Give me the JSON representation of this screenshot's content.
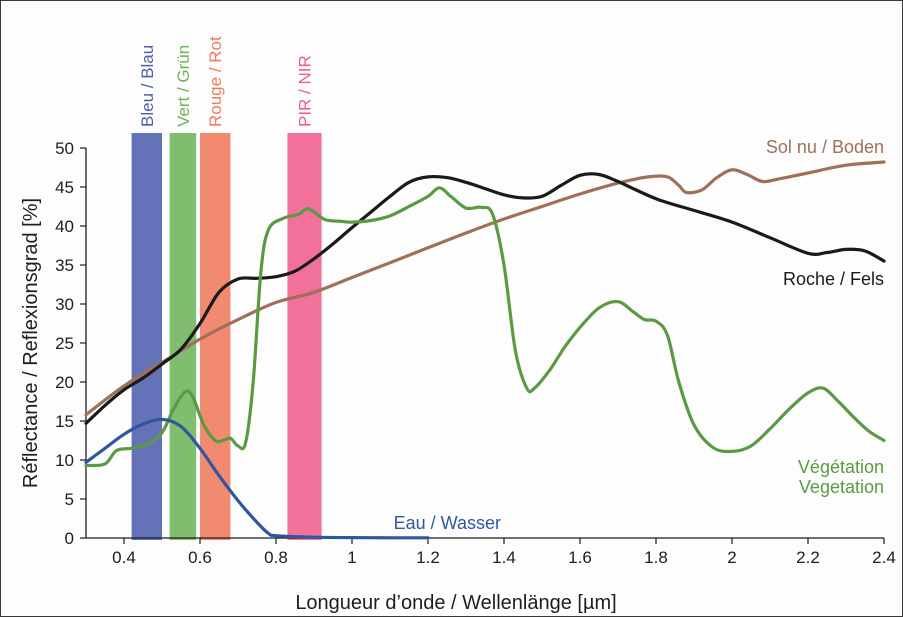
{
  "chart_data": {
    "type": "line",
    "xlabel": "Longueur d’onde / Wellenlänge [µm]",
    "ylabel": "Réflectance / Reflexionsgrad [%]",
    "xlim": [
      0.3,
      2.4
    ],
    "ylim": [
      0,
      50
    ],
    "grid": false,
    "x_ticks": [
      "0.4",
      "0.6",
      "0.8",
      "1",
      "1.2",
      "1.4",
      "1.6",
      "1.8",
      "2",
      "2.2",
      "2.4"
    ],
    "y_ticks": [
      "0",
      "5",
      "10",
      "15",
      "20",
      "25",
      "30",
      "35",
      "40",
      "45",
      "50"
    ],
    "bands": [
      {
        "label": "Bleu / Blau",
        "x_range": [
          0.42,
          0.5
        ],
        "color": "#4f5fae"
      },
      {
        "label": "Vert / Grün",
        "x_range": [
          0.52,
          0.59
        ],
        "color": "#6eb45a"
      },
      {
        "label": "Rouge / Rot",
        "x_range": [
          0.6,
          0.68
        ],
        "color": "#f07a5c"
      },
      {
        "label": "PIR / NIR",
        "x_range": [
          0.83,
          0.92
        ],
        "color": "#ef5d8c"
      }
    ],
    "series": [
      {
        "name": "Sol nu / Boden",
        "label_lines": [
          "Sol nu / Boden"
        ],
        "color": "#a0705a",
        "points": [
          [
            0.3,
            15.8
          ],
          [
            0.4,
            19.5
          ],
          [
            0.5,
            22.5
          ],
          [
            0.6,
            25.5
          ],
          [
            0.7,
            28
          ],
          [
            0.8,
            30.2
          ],
          [
            0.9,
            31.5
          ],
          [
            1.0,
            33.4
          ],
          [
            1.1,
            35.3
          ],
          [
            1.2,
            37.2
          ],
          [
            1.3,
            39.1
          ],
          [
            1.4,
            40.9
          ],
          [
            1.5,
            42.5
          ],
          [
            1.6,
            44.1
          ],
          [
            1.7,
            45.5
          ],
          [
            1.78,
            46.3
          ],
          [
            1.83,
            46.3
          ],
          [
            1.86,
            45.2
          ],
          [
            1.88,
            44.3
          ],
          [
            1.92,
            44.6
          ],
          [
            1.96,
            46.2
          ],
          [
            2.0,
            47.2
          ],
          [
            2.04,
            46.6
          ],
          [
            2.08,
            45.7
          ],
          [
            2.12,
            46
          ],
          [
            2.2,
            46.8
          ],
          [
            2.3,
            47.8
          ],
          [
            2.4,
            48.2
          ]
        ]
      },
      {
        "name": "Roche / Fels",
        "label_lines": [
          "Roche / Fels"
        ],
        "color": "#1a1a1a",
        "points": [
          [
            0.3,
            14.7
          ],
          [
            0.35,
            17
          ],
          [
            0.4,
            19
          ],
          [
            0.45,
            20.5
          ],
          [
            0.5,
            22.3
          ],
          [
            0.55,
            24.2
          ],
          [
            0.6,
            27.5
          ],
          [
            0.65,
            31.5
          ],
          [
            0.7,
            33.2
          ],
          [
            0.75,
            33.3
          ],
          [
            0.8,
            33.5
          ],
          [
            0.85,
            34.2
          ],
          [
            0.9,
            35.8
          ],
          [
            0.95,
            37.7
          ],
          [
            1.0,
            39.8
          ],
          [
            1.05,
            41.8
          ],
          [
            1.1,
            43.8
          ],
          [
            1.15,
            45.6
          ],
          [
            1.2,
            46.3
          ],
          [
            1.25,
            46.2
          ],
          [
            1.3,
            45.6
          ],
          [
            1.35,
            44.8
          ],
          [
            1.4,
            44
          ],
          [
            1.45,
            43.6
          ],
          [
            1.5,
            43.8
          ],
          [
            1.55,
            45.2
          ],
          [
            1.6,
            46.5
          ],
          [
            1.65,
            46.6
          ],
          [
            1.7,
            45.7
          ],
          [
            1.8,
            43.5
          ],
          [
            1.9,
            42
          ],
          [
            2.0,
            40.5
          ],
          [
            2.1,
            38.5
          ],
          [
            2.2,
            36.5
          ],
          [
            2.25,
            36.6
          ],
          [
            2.3,
            37
          ],
          [
            2.35,
            36.8
          ],
          [
            2.4,
            35.5
          ]
        ]
      },
      {
        "name": "Végétation Vegetation",
        "label_lines": [
          "Végétation",
          "Vegetation"
        ],
        "color": "#5a9a42",
        "points": [
          [
            0.3,
            9.3
          ],
          [
            0.35,
            9.5
          ],
          [
            0.38,
            11.2
          ],
          [
            0.42,
            11.5
          ],
          [
            0.46,
            12
          ],
          [
            0.5,
            13.5
          ],
          [
            0.53,
            16.5
          ],
          [
            0.56,
            18.7
          ],
          [
            0.58,
            18.2
          ],
          [
            0.61,
            14.5
          ],
          [
            0.64,
            12.5
          ],
          [
            0.66,
            12.5
          ],
          [
            0.68,
            12.8
          ],
          [
            0.7,
            11.8
          ],
          [
            0.72,
            12.2
          ],
          [
            0.74,
            20
          ],
          [
            0.76,
            34
          ],
          [
            0.78,
            39.5
          ],
          [
            0.82,
            41
          ],
          [
            0.86,
            41.5
          ],
          [
            0.88,
            42.2
          ],
          [
            0.9,
            41.8
          ],
          [
            0.93,
            40.8
          ],
          [
            0.97,
            40.6
          ],
          [
            1.0,
            40.5
          ],
          [
            1.05,
            40.7
          ],
          [
            1.1,
            41.3
          ],
          [
            1.15,
            42.5
          ],
          [
            1.2,
            43.8
          ],
          [
            1.23,
            44.9
          ],
          [
            1.26,
            43.8
          ],
          [
            1.3,
            42.3
          ],
          [
            1.34,
            42.4
          ],
          [
            1.37,
            41.5
          ],
          [
            1.4,
            35
          ],
          [
            1.43,
            24
          ],
          [
            1.46,
            19.2
          ],
          [
            1.48,
            19.2
          ],
          [
            1.52,
            21.5
          ],
          [
            1.56,
            24.5
          ],
          [
            1.6,
            27
          ],
          [
            1.65,
            29.5
          ],
          [
            1.7,
            30.3
          ],
          [
            1.74,
            29
          ],
          [
            1.77,
            28
          ],
          [
            1.8,
            27.8
          ],
          [
            1.83,
            26
          ],
          [
            1.86,
            20
          ],
          [
            1.9,
            14.5
          ],
          [
            1.95,
            11.6
          ],
          [
            2.0,
            11.1
          ],
          [
            2.05,
            11.8
          ],
          [
            2.1,
            14
          ],
          [
            2.15,
            16.5
          ],
          [
            2.2,
            18.6
          ],
          [
            2.24,
            19.2
          ],
          [
            2.28,
            17.5
          ],
          [
            2.32,
            15.5
          ],
          [
            2.36,
            13.7
          ],
          [
            2.4,
            12.5
          ]
        ]
      },
      {
        "name": "Eau / Wasser",
        "label_lines": [
          "Eau / Wasser"
        ],
        "color": "#2f57a0",
        "points": [
          [
            0.3,
            9.7
          ],
          [
            0.35,
            11.5
          ],
          [
            0.4,
            13.3
          ],
          [
            0.45,
            14.6
          ],
          [
            0.5,
            15.2
          ],
          [
            0.55,
            14.3
          ],
          [
            0.6,
            11.5
          ],
          [
            0.65,
            8
          ],
          [
            0.7,
            4.8
          ],
          [
            0.75,
            2
          ],
          [
            0.78,
            0.6
          ],
          [
            0.8,
            0.3
          ],
          [
            0.9,
            0.1
          ],
          [
            1.0,
            0.05
          ],
          [
            1.1,
            0.03
          ],
          [
            1.2,
            0.02
          ]
        ]
      }
    ]
  }
}
